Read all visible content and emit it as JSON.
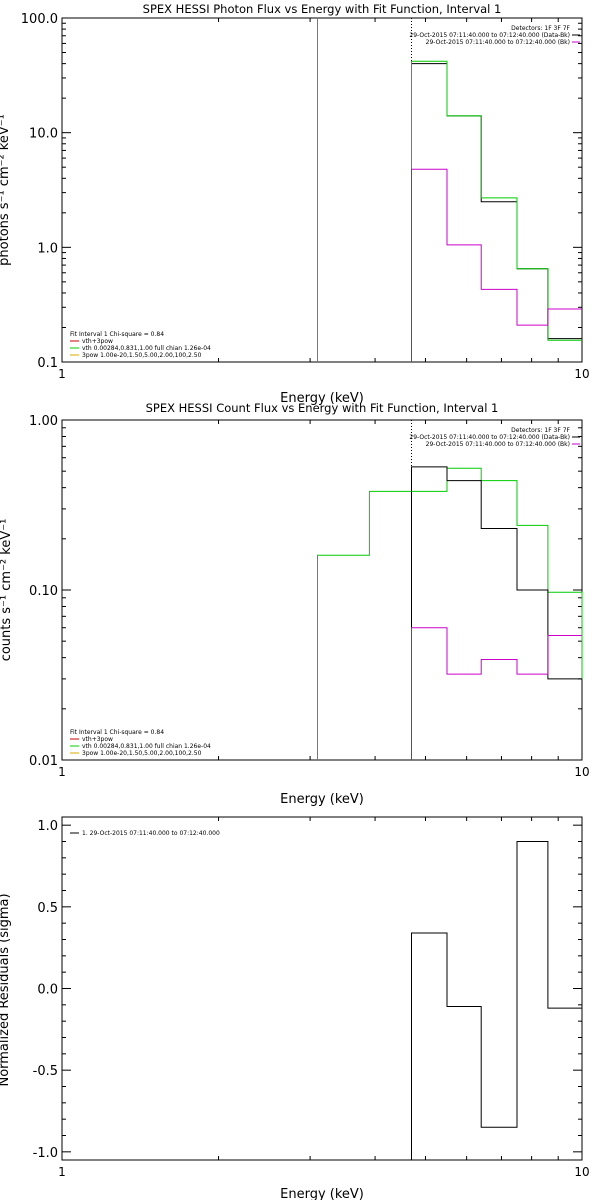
{
  "chart_data": [
    {
      "type": "line",
      "title": "SPEX HESSI Photon Flux vs Energy with Fit Function, Interval 1",
      "xlabel": "Energy (keV)",
      "ylabel": "photons s⁻¹ cm⁻² keV⁻¹",
      "xscale": "log",
      "yscale": "log",
      "xlim": [
        1,
        10
      ],
      "ylim": [
        0.1,
        100
      ],
      "xticks": [
        {
          "v": 1,
          "label": "1"
        },
        {
          "v": 10,
          "label": "10"
        }
      ],
      "yticks": [
        {
          "v": 0.1,
          "label": "0.1"
        },
        {
          "v": 1,
          "label": "1.0"
        },
        {
          "v": 10,
          "label": "10.0"
        },
        {
          "v": 100,
          "label": "100.0"
        }
      ],
      "legend_right": [
        {
          "text": "Detectors: 1F 3F 7F",
          "color": ""
        },
        {
          "text": "29-Oct-2015 07:11:40.000 to 07:12:40.000 (Data-Bk)",
          "color": "#000000"
        },
        {
          "text": "29-Oct-2015 07:11:40.000 to 07:12:40.000 (Bk)",
          "color": "#cc00cc"
        }
      ],
      "legend_left": [
        {
          "text": "Fit Interval  1    Chi-square = 0.84",
          "color": ""
        },
        {
          "text": "vth+3pow",
          "color": "#cc0000"
        },
        {
          "text": "vth 0.00284,0.831,1.00   full chian 1.26e-04",
          "color": "#00cc00"
        },
        {
          "text": "3pow 1.00e-20,1.50,5.00,2.00,100,2.50",
          "color": "#ddaa00"
        }
      ],
      "vlines": [
        {
          "x": 3.1,
          "color": "#00cc00",
          "dash": false
        },
        {
          "x": 4.7,
          "color": "#000000",
          "dash": true
        }
      ],
      "series": [
        {
          "color": "#000000",
          "edges": [
            4.7,
            5.5,
            6.4,
            7.5,
            8.6,
            10
          ],
          "values": [
            40,
            14,
            2.5,
            0.65,
            0.16
          ]
        },
        {
          "color": "#00cc00",
          "edges": [
            4.7,
            5.5,
            6.4,
            7.5,
            8.6,
            10
          ],
          "values": [
            42,
            14,
            2.7,
            0.65,
            0.155
          ]
        },
        {
          "color": "#cc00cc",
          "edges": [
            4.7,
            5.5,
            6.4,
            7.5,
            8.6,
            10
          ],
          "values": [
            4.8,
            1.05,
            0.43,
            0.21,
            0.29
          ]
        }
      ]
    },
    {
      "type": "line",
      "title": "SPEX HESSI Count Flux vs Energy with Fit Function, Interval 1",
      "xlabel": "Energy (keV)",
      "ylabel": "counts s⁻¹ cm⁻² keV⁻¹",
      "xscale": "log",
      "yscale": "log",
      "xlim": [
        1,
        10
      ],
      "ylim": [
        0.01,
        1
      ],
      "xticks": [
        {
          "v": 1,
          "label": "1"
        },
        {
          "v": 10,
          "label": "10"
        }
      ],
      "yticks": [
        {
          "v": 0.01,
          "label": "0.01"
        },
        {
          "v": 0.1,
          "label": "0.10"
        },
        {
          "v": 1,
          "label": "1.00"
        }
      ],
      "legend_right": [
        {
          "text": "Detectors: 1F 3F 7F",
          "color": ""
        },
        {
          "text": "29-Oct-2015 07:11:40.000 to 07:12:40.000 (Data-Bk)",
          "color": "#000000"
        },
        {
          "text": "29-Oct-2015 07:11:40.000 to 07:12:40.000 (Bk)",
          "color": "#cc00cc"
        }
      ],
      "legend_left": [
        {
          "text": "Fit Interval  1    Chi-square = 0.84",
          "color": ""
        },
        {
          "text": "vth+3pow",
          "color": "#cc0000"
        },
        {
          "text": "vth 0.00284,0.831,1.00   full chian 1.26e-04",
          "color": "#00cc00"
        },
        {
          "text": "3pow 1.00e-20,1.50,5.00,2.00,100,2.50",
          "color": "#ddaa00"
        }
      ],
      "vlines": [
        {
          "x": 4.7,
          "color": "#000000",
          "dash": true
        }
      ],
      "series": [
        {
          "color": "#00cc00",
          "edges": [
            3.1,
            3.9,
            4.7,
            5.5,
            6.4,
            7.5,
            8.6,
            10
          ],
          "values": [
            0.16,
            0.38,
            0.38,
            0.52,
            0.44,
            0.24,
            0.097,
            0.03
          ]
        },
        {
          "color": "#000000",
          "edges": [
            4.7,
            5.5,
            6.4,
            7.5,
            8.6,
            10
          ],
          "values": [
            0.53,
            0.44,
            0.23,
            0.1,
            0.03
          ]
        },
        {
          "color": "#cc00cc",
          "edges": [
            4.7,
            5.5,
            6.4,
            7.5,
            8.6,
            10
          ],
          "values": [
            0.06,
            0.032,
            0.039,
            0.032,
            0.054
          ]
        }
      ]
    },
    {
      "type": "line",
      "title": "",
      "xlabel": "Energy (keV)",
      "ylabel": "Normalized Residuals (sigma)",
      "xscale": "log",
      "yscale": "linear",
      "xlim": [
        1,
        10
      ],
      "ylim": [
        -1.05,
        1.05
      ],
      "xticks": [
        {
          "v": 1,
          "label": "1"
        },
        {
          "v": 10,
          "label": "10"
        }
      ],
      "yticks": [
        {
          "v": -1,
          "label": "-1.0"
        },
        {
          "v": -0.5,
          "label": "-0.5"
        },
        {
          "v": 0,
          "label": "0.0"
        },
        {
          "v": 0.5,
          "label": "0.5"
        },
        {
          "v": 1,
          "label": "1.0"
        }
      ],
      "legend_right": [],
      "legend_left": [
        {
          "text": "1. 29-Oct-2015 07:11:40.000 to 07:12:40.000",
          "color": "#000000"
        }
      ],
      "vlines": [],
      "series": [
        {
          "color": "#000000",
          "edges": [
            4.7,
            5.5,
            6.4,
            7.5,
            8.6,
            10
          ],
          "values": [
            0.34,
            -0.11,
            -0.85,
            0.9,
            -0.12
          ]
        }
      ]
    }
  ]
}
